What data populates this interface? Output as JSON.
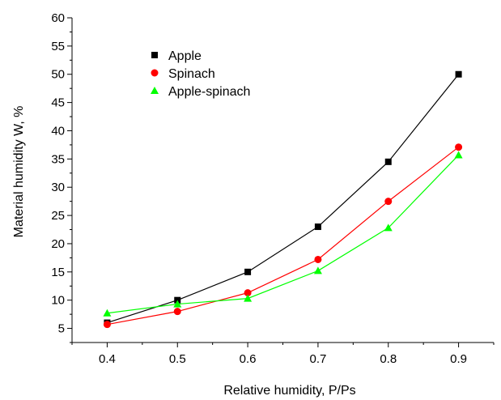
{
  "chart_data": {
    "type": "line",
    "title": "",
    "xlabel": "Relative humidity, P/Ps",
    "ylabel": "Material humidity W, %",
    "x": [
      0.4,
      0.5,
      0.6,
      0.7,
      0.8,
      0.9
    ],
    "x_ticks": [
      "0.4",
      "0.5",
      "0.6",
      "0.7",
      "0.8",
      "0.9"
    ],
    "y_ticks": [
      "5",
      "10",
      "15",
      "20",
      "25",
      "30",
      "35",
      "40",
      "45",
      "50",
      "55",
      "60"
    ],
    "xlim": [
      0.35,
      0.95
    ],
    "ylim": [
      2.5,
      60
    ],
    "grid": false,
    "legend_position": "top-left",
    "series": [
      {
        "name": "Apple",
        "color": "#000000",
        "marker": "square",
        "values": [
          6.0,
          10.0,
          15.0,
          23.0,
          34.5,
          50.0
        ]
      },
      {
        "name": "Spinach",
        "color": "#ff0000",
        "marker": "circle",
        "values": [
          5.7,
          8.0,
          11.3,
          17.2,
          27.5,
          37.1
        ]
      },
      {
        "name": "Apple-spinach",
        "color": "#00ff00",
        "marker": "triangle",
        "values": [
          7.7,
          9.3,
          10.3,
          15.2,
          22.8,
          35.7
        ]
      }
    ]
  }
}
